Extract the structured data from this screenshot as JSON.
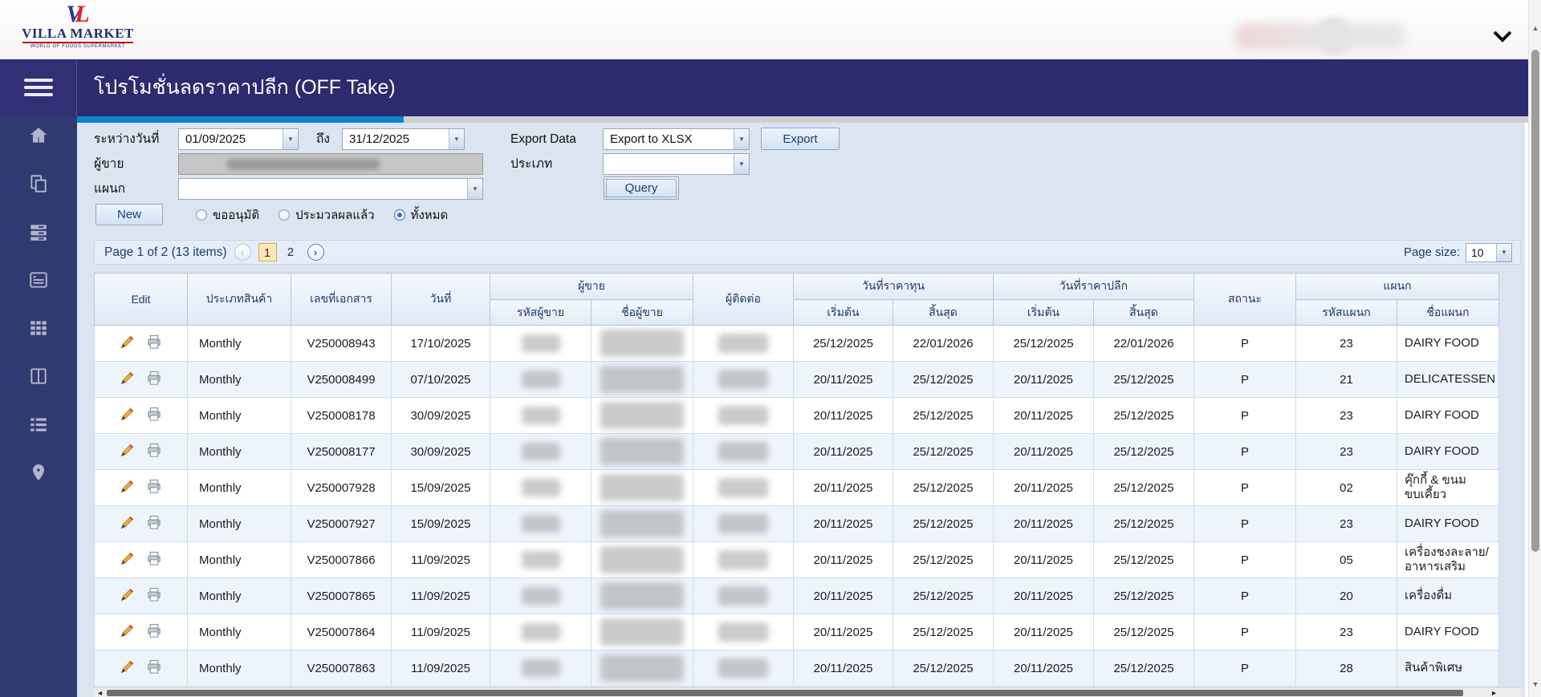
{
  "header": {
    "logo": {
      "mark_v": "V",
      "mark_l": "L",
      "name": "VILLA MARKET",
      "tagline": "WORLD OF FOODS SUPERMARKET"
    }
  },
  "app_bar": {
    "title": "โปรโมชั่นลดราคาปลีก (OFF Take)"
  },
  "colors": {
    "accent_blue": "#0b84cf",
    "app_bar_navy": "#2d2a6e",
    "sidebar_navy": "#2e3a70",
    "current_page_highlight": "#fbe7b5"
  },
  "sidebar": {
    "icons": [
      "menu",
      "home",
      "copy-pages",
      "server-stack",
      "card-list",
      "grid",
      "columns",
      "list",
      "location-pin"
    ]
  },
  "filters": {
    "date_between_label": "ระหว่างวันที่",
    "date_from": "01/09/2025",
    "date_to_label": "ถึง",
    "date_to": "31/12/2025",
    "export_data_label": "Export Data",
    "export_format": "Export to XLSX",
    "export_button": "Export",
    "vendor_label": "ผู้ขาย",
    "type_label": "ประเภท",
    "type_value": "",
    "department_label": "แผนก",
    "department_value": "",
    "query_button": "Query",
    "new_button": "New",
    "radios": [
      {
        "label": "ขออนุมัติ",
        "selected": false
      },
      {
        "label": "ประมวลผลแล้ว",
        "selected": false
      },
      {
        "label": "ทั้งหมด",
        "selected": true
      }
    ]
  },
  "pagination": {
    "summary": "Page 1 of 2 (13 items)",
    "pages": [
      "1",
      "2"
    ],
    "current_page": "1",
    "page_size_label": "Page size:",
    "page_size": "10"
  },
  "table": {
    "headers": {
      "edit": "Edit",
      "product_type": "ประเภทสินค้า",
      "doc_no": "เลขที่เอกสาร",
      "doc_date": "วันที่",
      "vendor_group": "ผู้ขาย",
      "vendor_code": "รหัสผู้ขาย",
      "vendor_name": "ชื่อผู้ขาย",
      "contact": "ผู้ติดต่อ",
      "cost_group": "วันที่ราคาทุน",
      "retail_group": "วันที่ราคาปลีก",
      "start": "เริ่มต้น",
      "end": "สิ้นสุด",
      "status": "สถานะ",
      "dept_group": "แผนก",
      "dept_code": "รหัสแผนก",
      "dept_name": "ชื่อแผนก"
    },
    "rows": [
      {
        "product_type": "Monthly",
        "doc_no": "V250008943",
        "doc_date": "17/10/2025",
        "cost_start": "25/12/2025",
        "cost_end": "22/01/2026",
        "retail_start": "25/12/2025",
        "retail_end": "22/01/2026",
        "status": "P",
        "dept_code": "23",
        "dept_name": "DAIRY FOOD"
      },
      {
        "product_type": "Monthly",
        "doc_no": "V250008499",
        "doc_date": "07/10/2025",
        "cost_start": "20/11/2025",
        "cost_end": "25/12/2025",
        "retail_start": "20/11/2025",
        "retail_end": "25/12/2025",
        "status": "P",
        "dept_code": "21",
        "dept_name": "DELICATESSEN"
      },
      {
        "product_type": "Monthly",
        "doc_no": "V250008178",
        "doc_date": "30/09/2025",
        "cost_start": "20/11/2025",
        "cost_end": "25/12/2025",
        "retail_start": "20/11/2025",
        "retail_end": "25/12/2025",
        "status": "P",
        "dept_code": "23",
        "dept_name": "DAIRY FOOD"
      },
      {
        "product_type": "Monthly",
        "doc_no": "V250008177",
        "doc_date": "30/09/2025",
        "cost_start": "20/11/2025",
        "cost_end": "25/12/2025",
        "retail_start": "20/11/2025",
        "retail_end": "25/12/2025",
        "status": "P",
        "dept_code": "23",
        "dept_name": "DAIRY FOOD"
      },
      {
        "product_type": "Monthly",
        "doc_no": "V250007928",
        "doc_date": "15/09/2025",
        "cost_start": "20/11/2025",
        "cost_end": "25/12/2025",
        "retail_start": "20/11/2025",
        "retail_end": "25/12/2025",
        "status": "P",
        "dept_code": "02",
        "dept_name": "คุ๊กกี้ & ขนม ขบเคี้ยว"
      },
      {
        "product_type": "Monthly",
        "doc_no": "V250007927",
        "doc_date": "15/09/2025",
        "cost_start": "20/11/2025",
        "cost_end": "25/12/2025",
        "retail_start": "20/11/2025",
        "retail_end": "25/12/2025",
        "status": "P",
        "dept_code": "23",
        "dept_name": "DAIRY FOOD"
      },
      {
        "product_type": "Monthly",
        "doc_no": "V250007866",
        "doc_date": "11/09/2025",
        "cost_start": "20/11/2025",
        "cost_end": "25/12/2025",
        "retail_start": "20/11/2025",
        "retail_end": "25/12/2025",
        "status": "P",
        "dept_code": "05",
        "dept_name": "เครื่องชงละลาย/อาหารเสริม"
      },
      {
        "product_type": "Monthly",
        "doc_no": "V250007865",
        "doc_date": "11/09/2025",
        "cost_start": "20/11/2025",
        "cost_end": "25/12/2025",
        "retail_start": "20/11/2025",
        "retail_end": "25/12/2025",
        "status": "P",
        "dept_code": "20",
        "dept_name": "เครื่องดื่ม"
      },
      {
        "product_type": "Monthly",
        "doc_no": "V250007864",
        "doc_date": "11/09/2025",
        "cost_start": "20/11/2025",
        "cost_end": "25/12/2025",
        "retail_start": "20/11/2025",
        "retail_end": "25/12/2025",
        "status": "P",
        "dept_code": "23",
        "dept_name": "DAIRY FOOD"
      },
      {
        "product_type": "Monthly",
        "doc_no": "V250007863",
        "doc_date": "11/09/2025",
        "cost_start": "20/11/2025",
        "cost_end": "25/12/2025",
        "retail_start": "20/11/2025",
        "retail_end": "25/12/2025",
        "status": "P",
        "dept_code": "28",
        "dept_name": "สินค้าพิเศษ"
      }
    ]
  }
}
